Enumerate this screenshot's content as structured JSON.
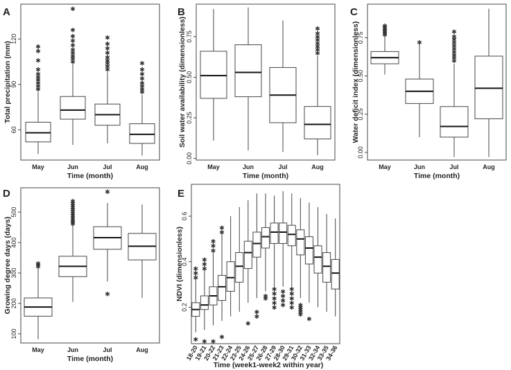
{
  "chart_data": [
    {
      "id": "A",
      "type": "box",
      "panel_label": "A",
      "xlabel": "Time (month)",
      "ylabel": "Total precipitation (mm)",
      "categories": [
        "May",
        "Jun",
        "Jul",
        "Aug"
      ],
      "yticks": [
        "60",
        "90",
        "120"
      ],
      "ytick_values": [
        60,
        90,
        120
      ],
      "ylim": [
        40,
        143
      ],
      "boxes": [
        {
          "low": 44,
          "q1": 52,
          "median": 58,
          "q3": 65,
          "high": 85,
          "outliers": [
            87,
            89,
            91,
            93,
            95,
            97,
            100,
            106,
            112,
            115
          ]
        },
        {
          "low": 50,
          "q1": 67,
          "median": 73,
          "q3": 82,
          "high": 104,
          "outliers": [
            105,
            107,
            109,
            111,
            113,
            116,
            119,
            122,
            126,
            140
          ]
        },
        {
          "low": 51,
          "q1": 63,
          "median": 70,
          "q3": 77,
          "high": 98,
          "outliers": [
            100,
            102,
            104,
            106,
            108,
            111,
            114,
            117,
            121
          ]
        },
        {
          "low": 43,
          "q1": 51,
          "median": 57,
          "q3": 64,
          "high": 83,
          "outliers": [
            85,
            87,
            89,
            91,
            94,
            97,
            100,
            104
          ]
        }
      ]
    },
    {
      "id": "B",
      "type": "box",
      "panel_label": "B",
      "xlabel": "Time (month)",
      "ylabel": "Soil water availability (dimensionless)",
      "categories": [
        "May",
        "Jun",
        "Jul",
        "Aug"
      ],
      "yticks": [
        "0.00",
        "0.25",
        "0.50",
        "0.75"
      ],
      "ytick_values": [
        0,
        0.25,
        0.5,
        0.75
      ],
      "ylim": [
        -0.01,
        0.95
      ],
      "boxes": [
        {
          "low": 0.11,
          "q1": 0.37,
          "median": 0.51,
          "q3": 0.66,
          "high": 0.92,
          "outliers": []
        },
        {
          "low": 0.05,
          "q1": 0.38,
          "median": 0.53,
          "q3": 0.7,
          "high": 0.93,
          "outliers": []
        },
        {
          "low": 0.04,
          "q1": 0.22,
          "median": 0.39,
          "q3": 0.56,
          "high": 0.85,
          "outliers": []
        },
        {
          "low": 0.02,
          "q1": 0.12,
          "median": 0.21,
          "q3": 0.32,
          "high": 0.63,
          "outliers": [
            0.65,
            0.67,
            0.69,
            0.71,
            0.73,
            0.75,
            0.77,
            0.8
          ]
        }
      ]
    },
    {
      "id": "C",
      "type": "box",
      "panel_label": "C",
      "xlabel": "Time (month)",
      "ylabel": "Water deficit index (dimensionless)",
      "categories": [
        "May",
        "Jun",
        "Jul",
        "Aug"
      ],
      "yticks": [
        "0.00",
        "0.25",
        "0.50",
        "0.75"
      ],
      "ytick_values": [
        0,
        0.25,
        0.5,
        0.75
      ],
      "ylim": [
        -0.05,
        0.97
      ],
      "boxes": [
        {
          "low": 0.51,
          "q1": 0.58,
          "median": 0.62,
          "q3": 0.66,
          "high": 0.76,
          "outliers": [
            0.77,
            0.78,
            0.79,
            0.8,
            0.81,
            0.82,
            0.83
          ]
        },
        {
          "low": 0.1,
          "q1": 0.32,
          "median": 0.4,
          "q3": 0.48,
          "high": 0.71,
          "outliers": [
            0.72
          ]
        },
        {
          "low": -0.03,
          "q1": 0.1,
          "median": 0.17,
          "q3": 0.3,
          "high": 0.58,
          "outliers": [
            0.6,
            0.62,
            0.64,
            0.66,
            0.68,
            0.7,
            0.72,
            0.74,
            0.76,
            0.79
          ]
        },
        {
          "low": -0.03,
          "q1": 0.22,
          "median": 0.42,
          "q3": 0.63,
          "high": 0.94,
          "outliers": []
        }
      ]
    },
    {
      "id": "D",
      "type": "box",
      "panel_label": "D",
      "xlabel": "Time (month)",
      "ylabel": "Growing degree days (days)",
      "categories": [
        "May",
        "Jun",
        "Jul",
        "Aug"
      ],
      "yticks": [
        "100",
        "200",
        "300",
        "400",
        "500"
      ],
      "ytick_values": [
        100,
        200,
        300,
        400,
        500
      ],
      "ylim": [
        70,
        580
      ],
      "boxes": [
        {
          "low": 82,
          "q1": 158,
          "median": 188,
          "q3": 218,
          "high": 318,
          "outliers": [
            322,
            327,
            332
          ]
        },
        {
          "low": 205,
          "q1": 288,
          "median": 322,
          "q3": 355,
          "high": 458,
          "outliers": [
            462,
            467,
            472,
            477,
            483,
            489,
            495,
            502,
            509,
            516,
            523,
            530,
            537
          ]
        },
        {
          "low": 272,
          "q1": 378,
          "median": 416,
          "q3": 452,
          "high": 530,
          "outliers": [
            232,
            568
          ]
        },
        {
          "low": 218,
          "q1": 343,
          "median": 388,
          "q3": 430,
          "high": 525,
          "outliers": []
        }
      ]
    },
    {
      "id": "E",
      "type": "box",
      "panel_label": "E",
      "xlabel": "Time (week1-week2 within year)",
      "ylabel": "NDVI (dimensionless)",
      "categories": [
        "18-20",
        "19-21",
        "20-22",
        "21-23",
        "22-24",
        "23-25",
        "24-26",
        "25-27",
        "26-28",
        "27-29",
        "28-30",
        "29-31",
        "30-32",
        "31-33",
        "32-34",
        "33-35",
        "34-36"
      ],
      "yticks": [
        "0.2",
        "0.4",
        "0.6"
      ],
      "ytick_values": [
        0.2,
        0.4,
        0.6
      ],
      "ylim": [
        0.04,
        0.74
      ],
      "boxes": [
        {
          "low": 0.09,
          "q1": 0.16,
          "median": 0.19,
          "q3": 0.22,
          "high": 0.32,
          "outliers": [
            0.06,
            0.33,
            0.35,
            0.37
          ]
        },
        {
          "low": 0.1,
          "q1": 0.19,
          "median": 0.21,
          "q3": 0.25,
          "high": 0.36,
          "outliers": [
            0.05,
            0.37,
            0.39,
            0.41
          ]
        },
        {
          "low": 0.12,
          "q1": 0.21,
          "median": 0.25,
          "q3": 0.29,
          "high": 0.44,
          "outliers": [
            0.05,
            0.45,
            0.47,
            0.49
          ]
        },
        {
          "low": 0.14,
          "q1": 0.23,
          "median": 0.29,
          "q3": 0.34,
          "high": 0.52,
          "outliers": [
            0.07,
            0.53,
            0.55
          ]
        },
        {
          "low": 0.16,
          "q1": 0.27,
          "median": 0.33,
          "q3": 0.4,
          "high": 0.6,
          "outliers": []
        },
        {
          "low": 0.18,
          "q1": 0.31,
          "median": 0.38,
          "q3": 0.44,
          "high": 0.64,
          "outliers": []
        },
        {
          "low": 0.22,
          "q1": 0.37,
          "median": 0.44,
          "q3": 0.49,
          "high": 0.67,
          "outliers": [
            0.13
          ]
        },
        {
          "low": 0.24,
          "q1": 0.42,
          "median": 0.48,
          "q3": 0.53,
          "high": 0.7,
          "outliers": [
            0.16,
            0.18
          ]
        },
        {
          "low": 0.27,
          "q1": 0.46,
          "median": 0.51,
          "q3": 0.55,
          "high": 0.7,
          "outliers": [
            0.24,
            0.25
          ]
        },
        {
          "low": 0.29,
          "q1": 0.48,
          "median": 0.53,
          "q3": 0.57,
          "high": 0.69,
          "outliers": [
            0.2,
            0.22,
            0.24,
            0.26,
            0.28
          ]
        },
        {
          "low": 0.29,
          "q1": 0.48,
          "median": 0.53,
          "q3": 0.57,
          "high": 0.71,
          "outliers": [
            0.21,
            0.23,
            0.25,
            0.27
          ]
        },
        {
          "low": 0.29,
          "q1": 0.47,
          "median": 0.52,
          "q3": 0.56,
          "high": 0.7,
          "outliers": [
            0.2,
            0.22,
            0.24,
            0.26,
            0.28
          ]
        },
        {
          "low": 0.24,
          "q1": 0.43,
          "median": 0.5,
          "q3": 0.54,
          "high": 0.68,
          "outliers": [
            0.17,
            0.18,
            0.19,
            0.2,
            0.21
          ]
        },
        {
          "low": 0.22,
          "q1": 0.39,
          "median": 0.46,
          "q3": 0.51,
          "high": 0.66,
          "outliers": [
            0.15
          ]
        },
        {
          "low": 0.2,
          "q1": 0.35,
          "median": 0.42,
          "q3": 0.47,
          "high": 0.64,
          "outliers": []
        },
        {
          "low": 0.18,
          "q1": 0.31,
          "median": 0.38,
          "q3": 0.44,
          "high": 0.61,
          "outliers": []
        },
        {
          "low": 0.16,
          "q1": 0.28,
          "median": 0.35,
          "q3": 0.41,
          "high": 0.59,
          "outliers": []
        }
      ]
    }
  ]
}
